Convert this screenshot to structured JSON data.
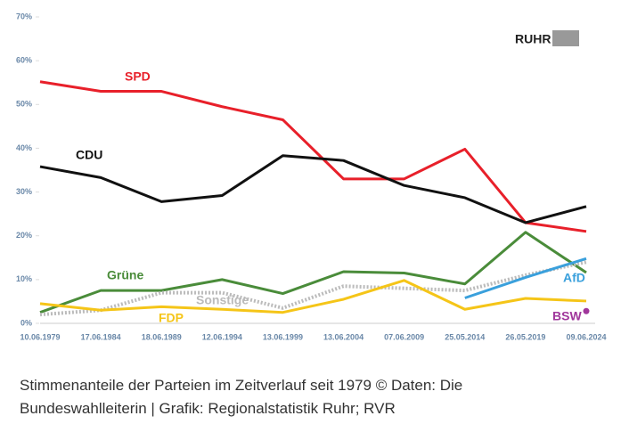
{
  "chart_data": {
    "type": "line",
    "logo": "RUHR",
    "categories": [
      "10.06.1979",
      "17.06.1984",
      "18.06.1989",
      "12.06.1994",
      "13.06.1999",
      "13.06.2004",
      "07.06.2009",
      "25.05.2014",
      "26.05.2019",
      "09.06.2024"
    ],
    "series": [
      {
        "name": "SPD",
        "color": "#e8202a",
        "values": [
          55.2,
          53,
          53,
          49.5,
          46.5,
          33,
          33,
          39.8,
          23,
          21
        ]
      },
      {
        "name": "CDU",
        "color": "#111111",
        "values": [
          35.8,
          33.3,
          27.8,
          29.2,
          38.3,
          37.2,
          31.5,
          28.7,
          23,
          26.7
        ]
      },
      {
        "name": "Grüne",
        "color": "#4a8c3a",
        "values": [
          2.5,
          7.5,
          7.5,
          10,
          6.8,
          11.8,
          11.5,
          9,
          20.8,
          11.6
        ]
      },
      {
        "name": "Sonstige",
        "color": "#bbbbbb",
        "dotted": true,
        "values": [
          2,
          3,
          7,
          7,
          3.5,
          8.5,
          8,
          7.5,
          11,
          14
        ]
      },
      {
        "name": "FDP",
        "color": "#f5c518",
        "values": [
          4.5,
          3,
          3.8,
          3.2,
          2.5,
          5.5,
          9.8,
          3.2,
          5.7,
          5.1
        ]
      },
      {
        "name": "AfD",
        "color": "#3aa0dc",
        "values": [
          null,
          null,
          null,
          null,
          null,
          null,
          null,
          5.8,
          10.5,
          14.8
        ]
      },
      {
        "name": "BSW",
        "color": "#a0379b",
        "values": [
          null,
          null,
          null,
          null,
          null,
          null,
          null,
          null,
          null,
          2.8
        ]
      }
    ],
    "ylim": [
      0,
      70
    ],
    "yticks": [
      {
        "value": 0,
        "label": "0%"
      },
      {
        "value": 10,
        "label": "10%"
      },
      {
        "value": 20,
        "label": "20%"
      },
      {
        "value": 30,
        "label": "30%"
      },
      {
        "value": 40,
        "label": "40%"
      },
      {
        "value": 50,
        "label": "50%"
      },
      {
        "value": 60,
        "label": "60%"
      },
      {
        "value": 70,
        "label": "70%"
      }
    ],
    "grid": false,
    "caption": [
      "Stimmenanteile der Parteien im Zeitverlauf seit 1979 © Daten: Die",
      "Bundeswahlleiterin | Grafik: Regionalstatistik Ruhr; RVR"
    ]
  }
}
